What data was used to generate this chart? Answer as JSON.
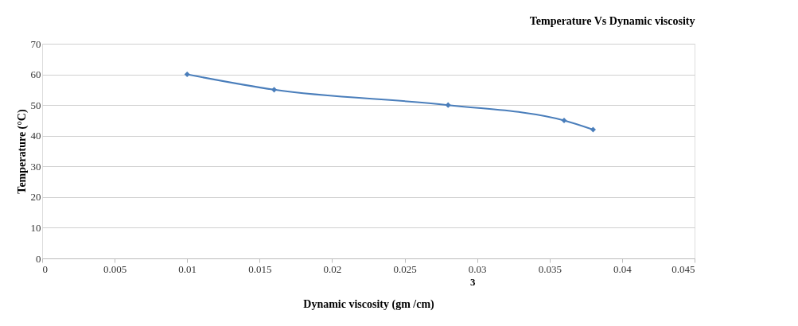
{
  "chart_data": {
    "type": "line",
    "title": "Temperature Vs Dynamic viscosity",
    "xlabel": "Dynamic viscosity (gm /cm)",
    "ylabel": "Temperature (°C)",
    "annotations": [
      "3"
    ],
    "x": [
      0.01,
      0.016,
      0.028,
      0.036,
      0.038
    ],
    "series": [
      {
        "color": "#4a7ebb",
        "values": [
          60,
          55,
          50,
          45,
          42
        ]
      }
    ],
    "xlim": [
      0,
      0.045
    ],
    "xticks": [
      0,
      0.005,
      0.01,
      0.015,
      0.02,
      0.025,
      0.03,
      0.035,
      0.04,
      0.045
    ],
    "ylim": [
      0,
      70
    ],
    "yticks": [
      0,
      10,
      20,
      30,
      40,
      50,
      60,
      70
    ],
    "grid": "y",
    "marker": "diamond",
    "line_style": "solid"
  }
}
